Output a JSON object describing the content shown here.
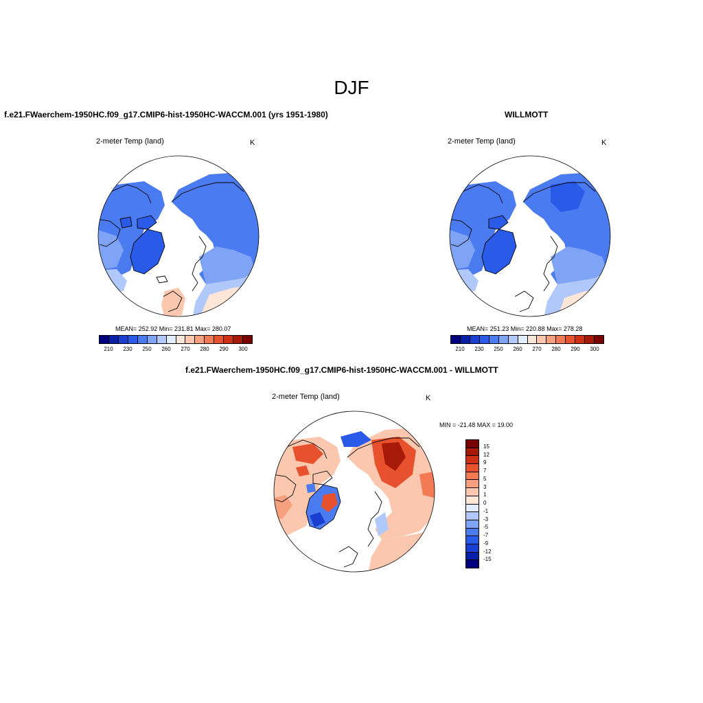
{
  "main_title": "DJF",
  "panels": [
    {
      "title": "f.e21.FWaerchem-1950HC.f09_g17.CMIP6-hist-1950HC-WACCM.001 (yrs 1951-1980)",
      "variable": "2-meter Temp (land)",
      "units": "K",
      "stats": "MEAN= 252.92  Min= 231.81  Max= 280.07",
      "colorbar_ticks": [
        "210",
        "230",
        "250",
        "260",
        "270",
        "280",
        "290",
        "300"
      ]
    },
    {
      "title": "WILLMOTT",
      "variable": "2-meter Temp (land)",
      "units": "K",
      "stats": "MEAN= 251.23  Min= 220.88  Max= 278.28",
      "colorbar_ticks": [
        "210",
        "230",
        "250",
        "260",
        "270",
        "280",
        "290",
        "300"
      ]
    },
    {
      "title": "f.e21.FWaerchem-1950HC.f09_g17.CMIP6-hist-1950HC-WACCM.001 - WILLMOTT",
      "variable": "2-meter Temp (land)",
      "units": "K",
      "stats": "MIN = -21.48 MAX =  19.00",
      "colorbar_ticks": [
        "15",
        "12",
        "9",
        "7",
        "5",
        "3",
        "1",
        "0",
        "-1",
        "-3",
        "-5",
        "-7",
        "-9",
        "-12",
        "-15"
      ]
    }
  ],
  "abs_colors": [
    "#00007f",
    "#0a1fa8",
    "#1a3fd0",
    "#2a5be8",
    "#4b7bf0",
    "#7fa4f5",
    "#b0c9fa",
    "#e1ecfd",
    "#fde6d8",
    "#fbc7ae",
    "#f8a07e",
    "#f27a55",
    "#e8512d",
    "#cf3014",
    "#a81a08",
    "#7a0000"
  ],
  "diff_colors": [
    "#7a0000",
    "#a81a08",
    "#cf3014",
    "#e8512d",
    "#f27a55",
    "#f8a07e",
    "#fbc7ae",
    "#fde6d8",
    "#e1ecfd",
    "#b0c9fa",
    "#7fa4f5",
    "#4b7bf0",
    "#2a5be8",
    "#1a3fd0",
    "#0a1fa8",
    "#00007f"
  ]
}
